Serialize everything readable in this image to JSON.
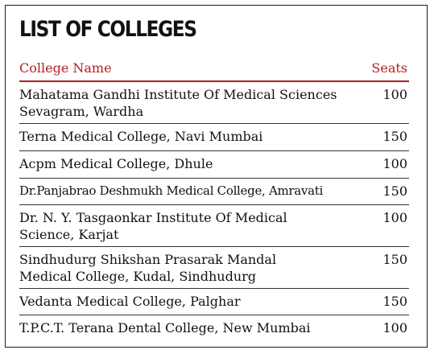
{
  "title": "LIST OF COLLEGES",
  "columns": {
    "name": "College Name",
    "seats": "Seats"
  },
  "colors": {
    "accent": "#b11e24",
    "text": "#111111",
    "border": "#1a1a1a"
  },
  "rows": [
    {
      "name": "Mahatama Gandhi Institute Of Medical Sciences Sevagram, Wardha",
      "seats": "100"
    },
    {
      "name": "Terna Medical College, Navi Mumbai",
      "seats": "150"
    },
    {
      "name": "Acpm Medical College, Dhule",
      "seats": "100"
    },
    {
      "name": "Dr.Panjabrao Deshmukh Medical College, Amravati",
      "seats": "150"
    },
    {
      "name": "Dr. N. Y. Tasgaonkar Institute Of Medical Science, Karjat",
      "seats": "100"
    },
    {
      "name": "Sindhudurg Shikshan Prasarak Mandal Medical College, Kudal, Sindhudurg",
      "seats": "150"
    },
    {
      "name": "Vedanta Medical College, Palghar",
      "seats": "150"
    },
    {
      "name": "T.P.C.T. Terana Dental College, New Mumbai",
      "seats": "100"
    }
  ]
}
